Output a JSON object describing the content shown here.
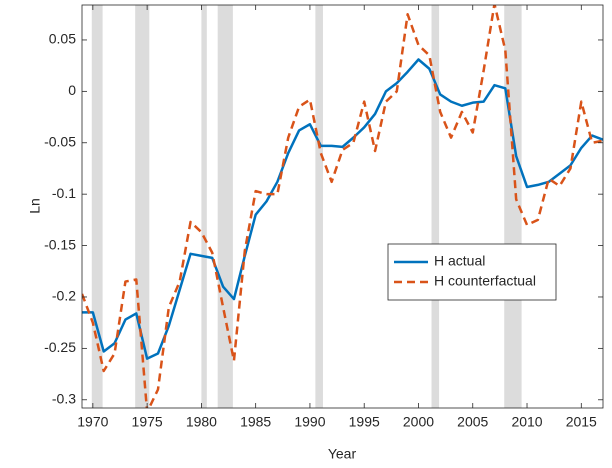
{
  "chart_data": {
    "type": "line",
    "x_label": "Year",
    "y_label": "Ln",
    "x": [
      1969,
      1970,
      1971,
      1972,
      1973,
      1974,
      1975,
      1976,
      1977,
      1978,
      1979,
      1980,
      1981,
      1982,
      1983,
      1984,
      1985,
      1986,
      1987,
      1988,
      1989,
      1990,
      1991,
      1992,
      1993,
      1994,
      1995,
      1996,
      1997,
      1998,
      1999,
      2000,
      2001,
      2002,
      2003,
      2004,
      2005,
      2006,
      2007,
      2008,
      2009,
      2010,
      2011,
      2012,
      2013,
      2014,
      2015,
      2016,
      2017
    ],
    "series": [
      {
        "name": "H actual",
        "color": "#0072bd",
        "style": "solid",
        "values": [
          -0.215,
          -0.215,
          -0.253,
          -0.245,
          -0.222,
          -0.216,
          -0.26,
          -0.255,
          -0.228,
          -0.193,
          -0.158,
          -0.16,
          -0.162,
          -0.19,
          -0.202,
          -0.16,
          -0.12,
          -0.107,
          -0.088,
          -0.06,
          -0.038,
          -0.032,
          -0.053,
          -0.053,
          -0.054,
          -0.045,
          -0.035,
          -0.022,
          0,
          0.008,
          0.019,
          0.031,
          0.022,
          -0.003,
          -0.01,
          -0.014,
          -0.011,
          -0.01,
          0.006,
          0.003,
          -0.063,
          -0.093,
          -0.091,
          -0.088,
          -0.08,
          -0.072,
          -0.055,
          -0.043,
          -0.047
        ]
      },
      {
        "name": "H counterfactual",
        "color": "#d95319",
        "style": "dashed",
        "values": [
          -0.197,
          -0.225,
          -0.272,
          -0.255,
          -0.185,
          -0.183,
          -0.312,
          -0.29,
          -0.21,
          -0.185,
          -0.127,
          -0.137,
          -0.157,
          -0.21,
          -0.262,
          -0.155,
          -0.097,
          -0.1,
          -0.1,
          -0.045,
          -0.015,
          -0.008,
          -0.06,
          -0.088,
          -0.057,
          -0.05,
          -0.01,
          -0.058,
          -0.01,
          0.0,
          0.075,
          0.045,
          0.035,
          -0.02,
          -0.045,
          -0.02,
          -0.04,
          0.02,
          0.085,
          0.04,
          -0.105,
          -0.13,
          -0.125,
          -0.085,
          -0.092,
          -0.075,
          -0.01,
          -0.05,
          -0.048
        ]
      }
    ],
    "shaded_periods": [
      [
        1969.9,
        1970.9
      ],
      [
        1973.9,
        1975.2
      ],
      [
        1980.0,
        1980.5
      ],
      [
        1981.5,
        1982.9
      ],
      [
        1990.5,
        1991.2
      ],
      [
        2001.2,
        2001.9
      ],
      [
        2007.9,
        2009.5
      ]
    ],
    "shade_color": "#dcdcdc",
    "xlim": [
      1969,
      2017
    ],
    "ylim": [
      -0.308,
      0.084
    ],
    "xticks": [
      1970,
      1975,
      1980,
      1985,
      1990,
      1995,
      2000,
      2005,
      2010,
      2015
    ],
    "yticks": [
      -0.3,
      -0.25,
      -0.2,
      -0.15,
      -0.1,
      -0.05,
      0,
      0.05
    ],
    "grid": false,
    "legend_position": "right"
  }
}
